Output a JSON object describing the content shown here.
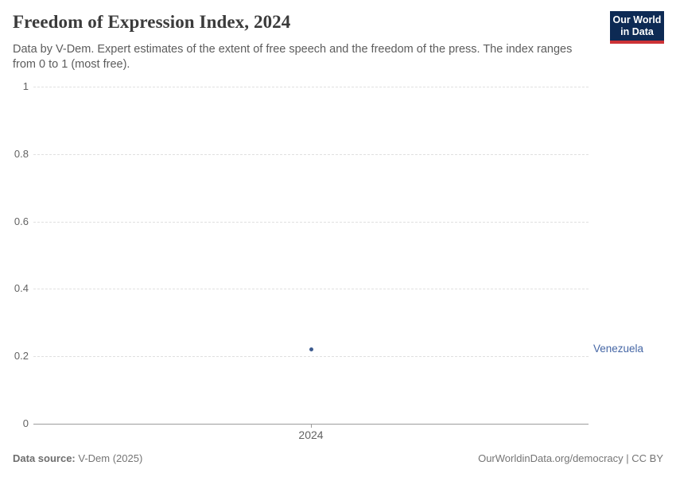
{
  "header": {
    "title": "Freedom of Expression Index, 2024",
    "subtitle": "Data by V-Dem. Expert estimates of the extent of free speech and the freedom of the press. The index ranges from 0 to 1 (most free).",
    "logo_line1": "Our World",
    "logo_line2": "in Data"
  },
  "chart_data": {
    "type": "scatter",
    "title": "Freedom of Expression Index, 2024",
    "x": [
      2024
    ],
    "x_tick_label": "2024",
    "series": [
      {
        "name": "Venezuela",
        "values": [
          0.22
        ]
      }
    ],
    "xlabel": "",
    "ylabel": "",
    "ylim": [
      0,
      1
    ],
    "yticks": [
      0,
      0.2,
      0.4,
      0.6,
      0.8,
      1
    ],
    "grid": true,
    "legend_position": "right-of-point"
  },
  "colors": {
    "point": "#3d5b8f",
    "entity_label": "#4566a5",
    "logo_background": "#0d2a54",
    "logo_stripe": "#cc3236",
    "gridline": "#e0e0e0",
    "axis": "#9c9c9c",
    "title_text": "#3b3b3b",
    "subtitle_text": "#5c5c5c"
  },
  "footer": {
    "source_label": "Data source:",
    "source_value": "V-Dem (2025)",
    "url": "OurWorldinData.org/democracy",
    "separator": " | ",
    "license": "CC BY"
  }
}
